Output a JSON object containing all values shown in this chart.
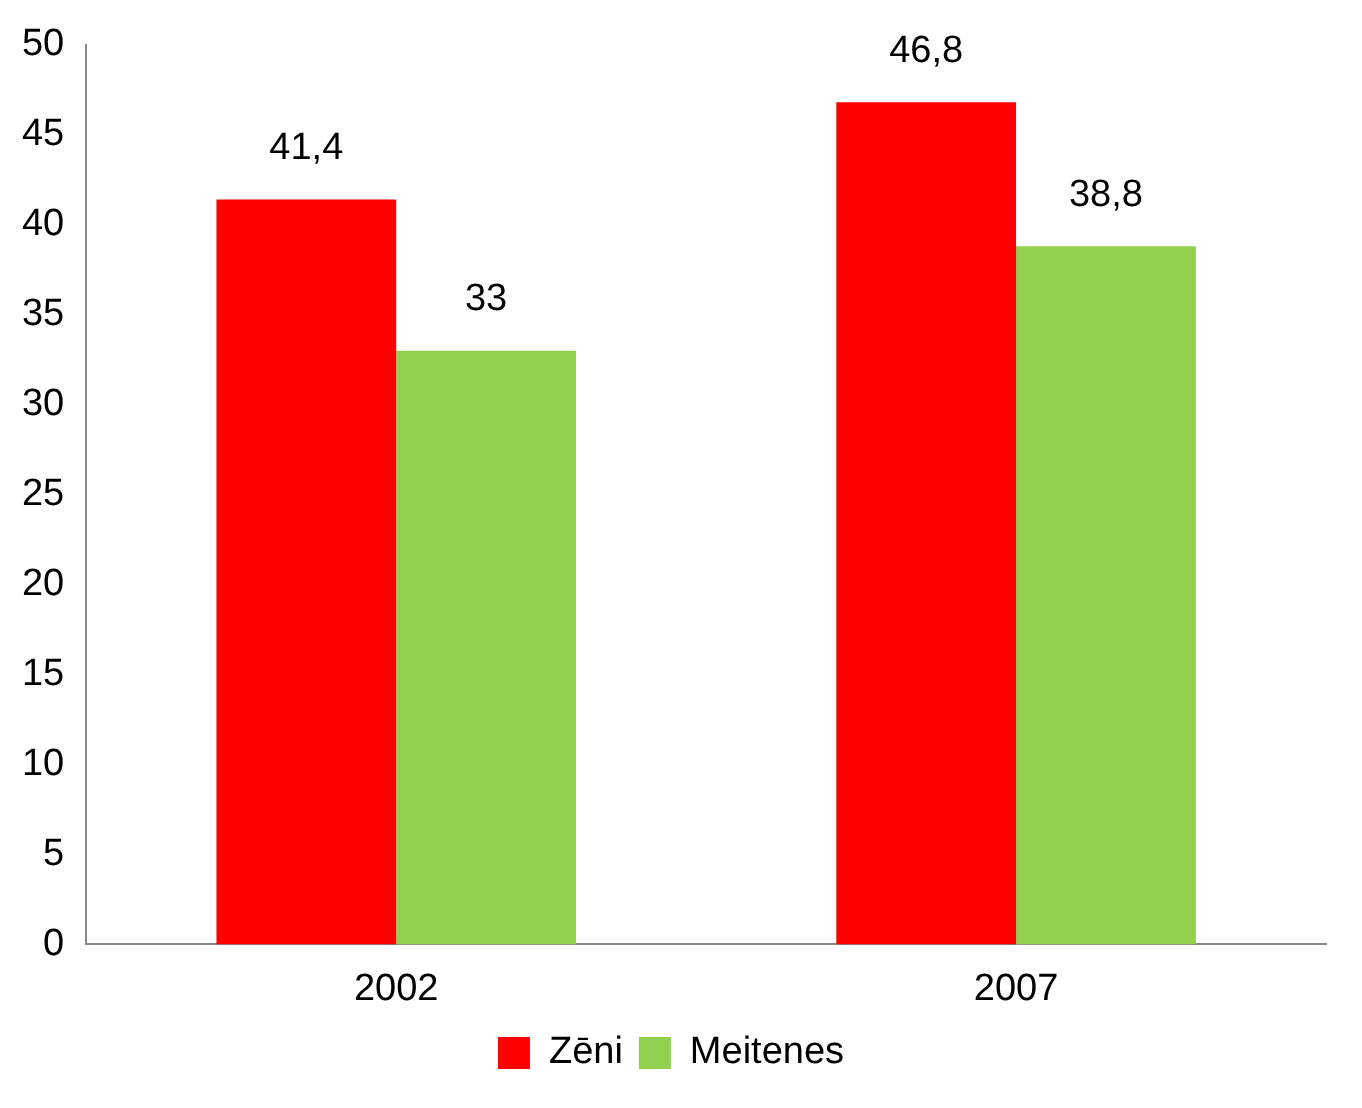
{
  "chart_data": {
    "type": "bar",
    "categories": [
      "2002",
      "2007"
    ],
    "series": [
      {
        "name": "Zēni",
        "color": "#ff0000",
        "values": [
          41.4,
          46.8
        ],
        "value_labels": [
          "41,4",
          "46,8"
        ]
      },
      {
        "name": "Meitenes",
        "color": "#92d050",
        "values": [
          33,
          38.8
        ],
        "value_labels": [
          "33",
          "38,8"
        ]
      }
    ],
    "ylim": [
      0,
      50
    ],
    "yticks": [
      0,
      5,
      10,
      15,
      20,
      25,
      30,
      35,
      40,
      45,
      50
    ],
    "grid": false,
    "legend": "bottom"
  }
}
